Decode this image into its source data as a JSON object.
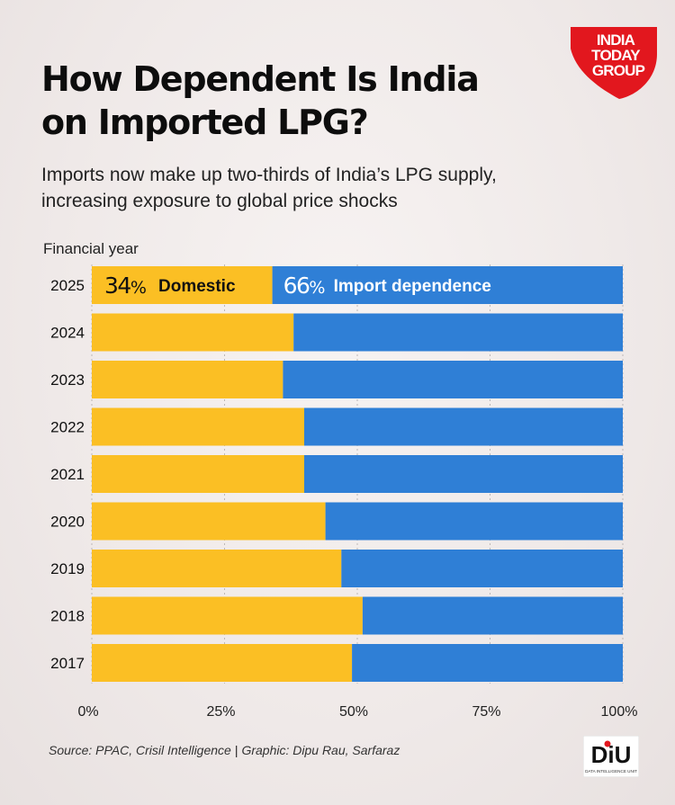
{
  "header": {
    "title_line1": "How Dependent Is India",
    "title_line2": "on Imported LPG?",
    "subtitle_line1": "Imports now make up two-thirds of India’s LPG supply,",
    "subtitle_line2": "increasing exposure to global price shocks"
  },
  "logo": {
    "line1": "INDIA",
    "line2": "TODAY",
    "line3": "GROUP"
  },
  "chart_data": {
    "type": "bar",
    "orientation": "horizontal",
    "stacked": true,
    "ylabel": "Financial year",
    "categories": [
      "2025",
      "2024",
      "2023",
      "2022",
      "2021",
      "2020",
      "2019",
      "2018",
      "2017"
    ],
    "series": [
      {
        "name": "Domestic",
        "color": "#fbbf24",
        "values": [
          34,
          38,
          36,
          40,
          40,
          44,
          47,
          51,
          49
        ]
      },
      {
        "name": "Import dependence",
        "color": "#2f7fd6",
        "values": [
          66,
          62,
          64,
          60,
          60,
          56,
          53,
          49,
          51
        ]
      }
    ],
    "data_labels": {
      "domestic_value": "34",
      "import_value": "66",
      "percent_sign": "%"
    },
    "xlim": [
      0,
      100
    ],
    "xticks": [
      "0%",
      "25%",
      "50%",
      "75%",
      "100%"
    ],
    "grid": true
  },
  "footer": {
    "source": "Source: PPAC, Crisil Intelligence",
    "separator": "|",
    "credit": "Graphic:  Dipu Rau, Sarfaraz",
    "badge": "DiU",
    "badge_caption": "DATA INTELLIGENCE UNIT"
  }
}
